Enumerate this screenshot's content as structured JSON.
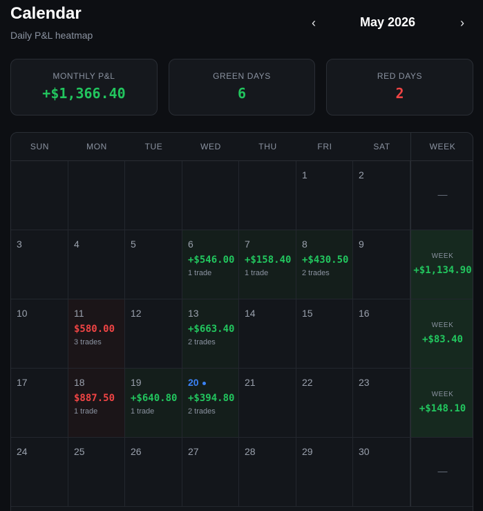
{
  "header": {
    "title": "Calendar",
    "subtitle": "Daily P&L heatmap",
    "month": "May 2026",
    "prev_icon": "‹",
    "next_icon": "›"
  },
  "stats": [
    {
      "label": "MONTHLY P&L",
      "value": "+$1,366.40",
      "tone": "green"
    },
    {
      "label": "GREEN DAYS",
      "value": "6",
      "tone": "green"
    },
    {
      "label": "RED DAYS",
      "value": "2",
      "tone": "red"
    }
  ],
  "colors": {
    "green": "#22c55e",
    "red": "#ef4444",
    "today": "#3b82f6",
    "background": "#0d0f13"
  },
  "weekdays": [
    "SUN",
    "MON",
    "TUE",
    "WED",
    "THU",
    "FRI",
    "SAT",
    "WEEK"
  ],
  "weeks": [
    {
      "days": [
        {
          "day": ""
        },
        {
          "day": ""
        },
        {
          "day": ""
        },
        {
          "day": ""
        },
        {
          "day": ""
        },
        {
          "day": "1"
        },
        {
          "day": "2"
        }
      ],
      "summary": {
        "label": "",
        "value": "",
        "empty": "—"
      }
    },
    {
      "days": [
        {
          "day": "3"
        },
        {
          "day": "4"
        },
        {
          "day": "5"
        },
        {
          "day": "6",
          "pnl": "+$546.00",
          "trades": "1 trade",
          "tone": "pos"
        },
        {
          "day": "7",
          "pnl": "+$158.40",
          "trades": "1 trade",
          "tone": "pos"
        },
        {
          "day": "8",
          "pnl": "+$430.50",
          "trades": "2 trades",
          "tone": "pos"
        },
        {
          "day": "9"
        }
      ],
      "summary": {
        "label": "WEEK",
        "value": "+$1,134.90",
        "tone": "pos"
      }
    },
    {
      "days": [
        {
          "day": "10"
        },
        {
          "day": "11",
          "pnl": "$580.00",
          "trades": "3 trades",
          "tone": "neg"
        },
        {
          "day": "12"
        },
        {
          "day": "13",
          "pnl": "+$663.40",
          "trades": "2 trades",
          "tone": "pos"
        },
        {
          "day": "14"
        },
        {
          "day": "15"
        },
        {
          "day": "16"
        }
      ],
      "summary": {
        "label": "WEEK",
        "value": "+$83.40",
        "tone": "pos"
      }
    },
    {
      "days": [
        {
          "day": "17"
        },
        {
          "day": "18",
          "pnl": "$887.50",
          "trades": "1 trade",
          "tone": "neg"
        },
        {
          "day": "19",
          "pnl": "+$640.80",
          "trades": "1 trade",
          "tone": "pos"
        },
        {
          "day": "20",
          "pnl": "+$394.80",
          "trades": "2 trades",
          "tone": "pos",
          "today": true
        },
        {
          "day": "21"
        },
        {
          "day": "22"
        },
        {
          "day": "23"
        }
      ],
      "summary": {
        "label": "WEEK",
        "value": "+$148.10",
        "tone": "pos"
      }
    },
    {
      "days": [
        {
          "day": "24"
        },
        {
          "day": "25"
        },
        {
          "day": "26"
        },
        {
          "day": "27"
        },
        {
          "day": "28"
        },
        {
          "day": "29"
        },
        {
          "day": "30"
        }
      ],
      "summary": {
        "label": "",
        "value": "",
        "empty": "—"
      }
    }
  ]
}
